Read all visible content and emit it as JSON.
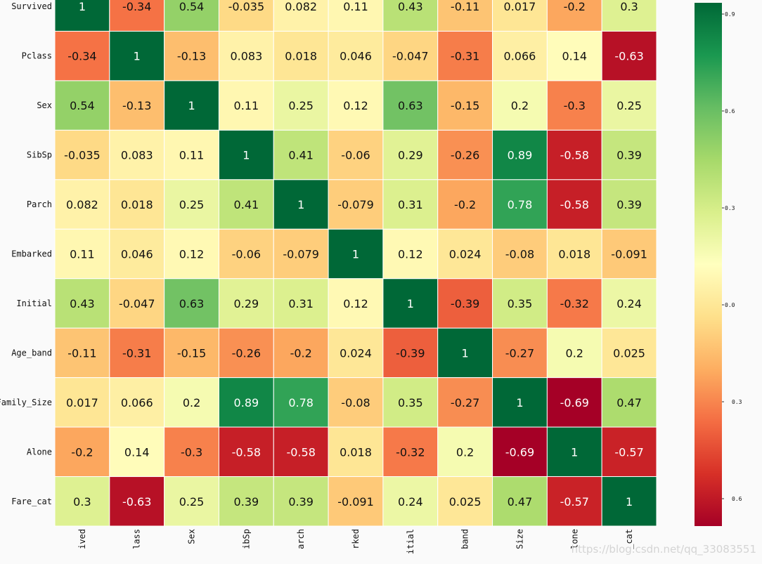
{
  "chart_data": {
    "type": "heatmap",
    "rows": [
      "Survived",
      "Pclass",
      "Sex",
      "SibSp",
      "Parch",
      "Embarked",
      "Initial",
      "Age_band",
      "Family_Size",
      "Alone",
      "Fare_cat"
    ],
    "x_tick_labels": [
      "ived",
      "lass",
      "Sex",
      "ibSp",
      "arch",
      "rked",
      "itial",
      "band",
      "Size",
      "lone",
      "_cat"
    ],
    "values": [
      [
        1,
        -0.34,
        0.54,
        -0.035,
        0.082,
        0.11,
        0.43,
        -0.11,
        0.017,
        -0.2,
        0.3
      ],
      [
        -0.34,
        1,
        -0.13,
        0.083,
        0.018,
        0.046,
        -0.047,
        -0.31,
        0.066,
        0.14,
        -0.63
      ],
      [
        0.54,
        -0.13,
        1,
        0.11,
        0.25,
        0.12,
        0.63,
        -0.15,
        0.2,
        -0.3,
        0.25
      ],
      [
        -0.035,
        0.083,
        0.11,
        1,
        0.41,
        -0.06,
        0.29,
        -0.26,
        0.89,
        -0.58,
        0.39
      ],
      [
        0.082,
        0.018,
        0.25,
        0.41,
        1,
        -0.079,
        0.31,
        -0.2,
        0.78,
        -0.58,
        0.39
      ],
      [
        0.11,
        0.046,
        0.12,
        -0.06,
        -0.079,
        1,
        0.12,
        0.024,
        -0.08,
        0.018,
        -0.091
      ],
      [
        0.43,
        -0.047,
        0.63,
        0.29,
        0.31,
        0.12,
        1,
        -0.39,
        0.35,
        -0.32,
        0.24
      ],
      [
        -0.11,
        -0.31,
        -0.15,
        -0.26,
        -0.2,
        0.024,
        -0.39,
        1,
        -0.27,
        0.2,
        0.025
      ],
      [
        0.017,
        0.066,
        0.2,
        0.89,
        0.78,
        -0.08,
        0.35,
        -0.27,
        1,
        -0.69,
        0.47
      ],
      [
        -0.2,
        0.14,
        -0.3,
        -0.58,
        -0.58,
        0.018,
        -0.32,
        0.2,
        -0.69,
        1,
        -0.57
      ],
      [
        0.3,
        -0.63,
        0.25,
        0.39,
        0.39,
        -0.091,
        0.24,
        0.025,
        0.47,
        -0.57,
        1
      ]
    ],
    "colormap": "RdYlGn",
    "vmin": -0.69,
    "vmax": 1,
    "annotate": true,
    "colorbar": {
      "tick_labels": [
        "0.9",
        "0.6",
        "0.3",
        "0.0",
        "0.3",
        "0.6"
      ],
      "tick_values": [
        0.9,
        0.6,
        0.3,
        0.0,
        -0.3,
        -0.6
      ]
    }
  },
  "watermark": "https://blog.csdn.net/qq_33083551"
}
